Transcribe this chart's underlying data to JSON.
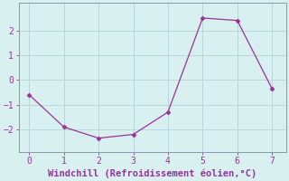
{
  "x": [
    0,
    1,
    2,
    3,
    4,
    5,
    6,
    7
  ],
  "y": [
    -0.6,
    -1.9,
    -2.35,
    -2.2,
    -1.3,
    2.5,
    2.4,
    -0.35
  ],
  "line_color": "#993399",
  "marker": "D",
  "marker_size": 2.5,
  "background_color": "#d8f0f0",
  "grid_color": "#b8d8d8",
  "spine_color": "#8899aa",
  "xlabel": "Windchill (Refroidissement éolien,°C)",
  "xlabel_color": "#993399",
  "xlabel_fontsize": 7.5,
  "tick_color": "#993399",
  "tick_fontsize": 7,
  "xlim": [
    -0.3,
    7.4
  ],
  "ylim": [
    -2.9,
    3.1
  ],
  "yticks": [
    -2,
    -1,
    0,
    1,
    2
  ],
  "xticks": [
    0,
    1,
    2,
    3,
    4,
    5,
    6,
    7
  ]
}
